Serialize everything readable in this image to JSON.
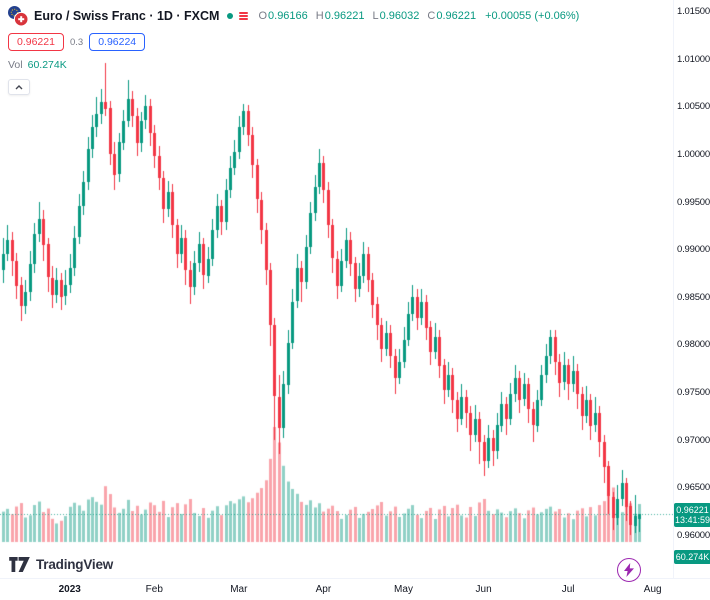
{
  "colors": {
    "up": "#089981",
    "down": "#F23645",
    "volume_up": "rgba(8,153,129,0.45)",
    "volume_down": "rgba(242,54,69,0.45)",
    "bid_red": "#F23645",
    "ask_blue": "#2962FF",
    "badge_bg": "#089981",
    "flash_purple": "#9C27B0"
  },
  "header": {
    "symbol_title": "Euro / Swiss Franc · 1D · FXCM",
    "ohlc": {
      "o_label": "O",
      "o_value": "0.96166",
      "h_label": "H",
      "h_value": "0.96221",
      "l_label": "L",
      "l_value": "0.96032",
      "c_label": "C",
      "c_value": "0.96221",
      "change_text": "+0.00055 (+0.06%)"
    },
    "bid": "0.96221",
    "spread": "0.3",
    "ask": "0.96224",
    "vol_label": "Vol",
    "vol_value": "60.274K"
  },
  "price_scale": {
    "labels": [
      "1.01500",
      "1.01000",
      "1.00500",
      "1.00000",
      "0.99500",
      "0.99000",
      "0.98500",
      "0.98000",
      "0.97500",
      "0.97000",
      "0.96500",
      "0.96000"
    ],
    "last_price": "0.96221",
    "countdown": "13:41:59",
    "volume_badge": "60.274K"
  },
  "time_scale": {
    "labels": [
      {
        "text": "2023",
        "day": 15,
        "bold": true
      },
      {
        "text": "Feb",
        "day": 34
      },
      {
        "text": "Mar",
        "day": 53
      },
      {
        "text": "Apr",
        "day": 72
      },
      {
        "text": "May",
        "day": 90
      },
      {
        "text": "Jun",
        "day": 108
      },
      {
        "text": "Jul",
        "day": 127
      },
      {
        "text": "Aug",
        "day": 146
      }
    ]
  },
  "footer": {
    "brand": "TradingView"
  },
  "chart_data": {
    "type": "candlestick",
    "title": "Euro / Swiss Franc",
    "symbol": "EUR/CHF",
    "interval": "1D",
    "exchange": "FXCM",
    "legend_position": "top-left",
    "grid": false,
    "y_axis": {
      "min": 0.958,
      "max": 1.0155,
      "tick_step": 0.005
    },
    "x_axis": {
      "start": "Dec 2022",
      "end": "Aug 2023"
    },
    "volume_pane": true,
    "last_bar": {
      "open": 0.96166,
      "high": 0.96221,
      "low": 0.96032,
      "close": 0.96221,
      "change": 0.00055,
      "change_pct": 0.06,
      "volume": "60.274K"
    },
    "candles_format": [
      "open",
      "high",
      "low",
      "close",
      "volume_thousands"
    ],
    "candles": [
      [
        0.9878,
        0.9912,
        0.9865,
        0.9895,
        48.2
      ],
      [
        0.9895,
        0.9925,
        0.9888,
        0.991,
        52.6
      ],
      [
        0.991,
        0.9918,
        0.9872,
        0.9888,
        44.1
      ],
      [
        0.9888,
        0.9896,
        0.9848,
        0.9862,
        56.3
      ],
      [
        0.9862,
        0.9871,
        0.9825,
        0.984,
        61.8
      ],
      [
        0.984,
        0.9868,
        0.9832,
        0.9855,
        38.9
      ],
      [
        0.9855,
        0.9898,
        0.9846,
        0.9884,
        42.4
      ],
      [
        0.9884,
        0.9928,
        0.9875,
        0.9916,
        58.7
      ],
      [
        0.9916,
        0.995,
        0.9908,
        0.9932,
        64.2
      ],
      [
        0.9932,
        0.9941,
        0.9888,
        0.9905,
        47.5
      ],
      [
        0.9905,
        0.9912,
        0.9855,
        0.987,
        53.1
      ],
      [
        0.987,
        0.9882,
        0.9838,
        0.9852,
        36.8
      ],
      [
        0.9852,
        0.988,
        0.9844,
        0.9868,
        29.4
      ],
      [
        0.9868,
        0.9875,
        0.9836,
        0.985,
        33.7
      ],
      [
        0.985,
        0.9878,
        0.9841,
        0.9862,
        41.2
      ],
      [
        0.9862,
        0.9895,
        0.9854,
        0.988,
        55.9
      ],
      [
        0.988,
        0.9924,
        0.9872,
        0.9912,
        62.3
      ],
      [
        0.9912,
        0.9958,
        0.9905,
        0.9945,
        58.1
      ],
      [
        0.9945,
        0.9982,
        0.9936,
        0.997,
        49.6
      ],
      [
        0.997,
        1.0018,
        0.9962,
        1.0005,
        67.4
      ],
      [
        1.0005,
        1.0041,
        0.9996,
        1.0028,
        71.2
      ],
      [
        1.0028,
        1.006,
        1.0018,
        1.0042,
        63.8
      ],
      [
        1.0042,
        1.0068,
        1.0031,
        1.0055,
        59.3
      ],
      [
        1.0055,
        1.0095,
        1.004,
        1.0048,
        88.6
      ],
      [
        1.0048,
        1.0056,
        0.9988,
        1.0,
        76.1
      ],
      [
        1.0,
        1.0012,
        0.9962,
        0.9978,
        54.8
      ],
      [
        0.9978,
        1.0022,
        0.997,
        1.0012,
        46.3
      ],
      [
        1.0012,
        1.0046,
        1.0004,
        1.0035,
        52.7
      ],
      [
        1.0035,
        1.0078,
        1.0028,
        1.0058,
        66.9
      ],
      [
        1.0058,
        1.0066,
        1.0028,
        1.004,
        49.2
      ],
      [
        1.004,
        1.0048,
        0.9998,
        1.0012,
        57.5
      ],
      [
        1.0012,
        1.0044,
        1.0002,
        1.0035,
        43.8
      ],
      [
        1.0035,
        1.0062,
        1.0026,
        1.005,
        51.4
      ],
      [
        1.005,
        1.0058,
        1.0008,
        1.0022,
        62.7
      ],
      [
        1.0022,
        1.003,
        0.9985,
        0.9998,
        58.4
      ],
      [
        0.9998,
        1.0008,
        0.9962,
        0.9975,
        47.9
      ],
      [
        0.9975,
        0.9982,
        0.9928,
        0.9942,
        65.3
      ],
      [
        0.9942,
        0.9972,
        0.9934,
        0.996,
        39.6
      ],
      [
        0.996,
        0.9968,
        0.9912,
        0.9925,
        55.2
      ],
      [
        0.9925,
        0.9932,
        0.988,
        0.9895,
        61.7
      ],
      [
        0.9895,
        0.9925,
        0.9886,
        0.9912,
        44.5
      ],
      [
        0.9912,
        0.992,
        0.9862,
        0.9878,
        59.8
      ],
      [
        0.9878,
        0.9888,
        0.9842,
        0.986,
        68.2
      ],
      [
        0.986,
        0.9898,
        0.9852,
        0.9885,
        46.1
      ],
      [
        0.9885,
        0.9918,
        0.9876,
        0.9905,
        41.3
      ],
      [
        0.9905,
        0.9912,
        0.9858,
        0.9872,
        53.9
      ],
      [
        0.9872,
        0.9902,
        0.9864,
        0.989,
        38.4
      ],
      [
        0.989,
        0.9932,
        0.9882,
        0.992,
        49.7
      ],
      [
        0.992,
        0.9958,
        0.9912,
        0.9945,
        56.8
      ],
      [
        0.9945,
        0.9952,
        0.9915,
        0.9928,
        42.6
      ],
      [
        0.9928,
        0.9974,
        0.992,
        0.9962,
        58.3
      ],
      [
        0.9962,
        0.9998,
        0.9954,
        0.9985,
        64.9
      ],
      [
        0.9985,
        1.0015,
        0.9978,
        1.0002,
        61.2
      ],
      [
        1.0002,
        1.004,
        0.9995,
        1.0028,
        67.8
      ],
      [
        1.0028,
        1.0052,
        1.002,
        1.0045,
        72.4
      ],
      [
        1.0045,
        1.0051,
        1.0008,
        1.002,
        63.1
      ],
      [
        1.002,
        1.0028,
        0.9975,
        0.9988,
        69.5
      ],
      [
        0.9988,
        0.9995,
        0.9938,
        0.9952,
        78.2
      ],
      [
        0.9952,
        0.996,
        0.9905,
        0.992,
        85.6
      ],
      [
        0.992,
        0.9928,
        0.9862,
        0.9878,
        98.0
      ],
      [
        0.9878,
        0.9885,
        0.9798,
        0.982,
        132.0
      ],
      [
        0.982,
        0.9828,
        0.97,
        0.9745,
        182.6
      ],
      [
        0.9745,
        0.9768,
        0.9685,
        0.9712,
        158.0
      ],
      [
        0.9712,
        0.9772,
        0.9702,
        0.9758,
        121.0
      ],
      [
        0.9758,
        0.9815,
        0.9748,
        0.9802,
        96.0
      ],
      [
        0.9802,
        0.9858,
        0.9795,
        0.9845,
        84.2
      ],
      [
        0.9845,
        0.9895,
        0.9838,
        0.988,
        76.5
      ],
      [
        0.988,
        0.9888,
        0.9845,
        0.9865,
        63.7
      ],
      [
        0.9865,
        0.9915,
        0.9858,
        0.9902,
        58.9
      ],
      [
        0.9902,
        0.995,
        0.9895,
        0.9938,
        66.2
      ],
      [
        0.9938,
        0.9978,
        0.993,
        0.9965,
        54.8
      ],
      [
        0.9965,
        1.0005,
        0.9958,
        0.999,
        61.5
      ],
      [
        0.999,
        0.9998,
        0.9948,
        0.9962,
        48.3
      ],
      [
        0.9962,
        0.997,
        0.9912,
        0.9925,
        52.9
      ],
      [
        0.9925,
        0.9932,
        0.9875,
        0.989,
        57.6
      ],
      [
        0.989,
        0.9898,
        0.9848,
        0.9862,
        49.1
      ],
      [
        0.9862,
        0.99,
        0.9855,
        0.9888,
        36.7
      ],
      [
        0.9888,
        0.9922,
        0.988,
        0.991,
        42.8
      ],
      [
        0.991,
        0.9918,
        0.9872,
        0.9885,
        51.3
      ],
      [
        0.9885,
        0.9892,
        0.9845,
        0.9858,
        55.7
      ],
      [
        0.9858,
        0.9885,
        0.985,
        0.9872,
        38.2
      ],
      [
        0.9872,
        0.9908,
        0.9864,
        0.9895,
        44.6
      ],
      [
        0.9895,
        0.9902,
        0.9855,
        0.9868,
        47.9
      ],
      [
        0.9868,
        0.9875,
        0.9828,
        0.9842,
        52.4
      ],
      [
        0.9842,
        0.985,
        0.9805,
        0.982,
        58.1
      ],
      [
        0.982,
        0.9828,
        0.9782,
        0.9795,
        63.5
      ],
      [
        0.9795,
        0.9825,
        0.9788,
        0.9812,
        41.9
      ],
      [
        0.9812,
        0.982,
        0.9775,
        0.9788,
        48.7
      ],
      [
        0.9788,
        0.9795,
        0.9748,
        0.9765,
        56.2
      ],
      [
        0.9765,
        0.9795,
        0.9758,
        0.9782,
        39.8
      ],
      [
        0.9782,
        0.9818,
        0.9775,
        0.9805,
        45.3
      ],
      [
        0.9805,
        0.9845,
        0.9798,
        0.9832,
        52.8
      ],
      [
        0.9832,
        0.9862,
        0.9825,
        0.985,
        58.6
      ],
      [
        0.985,
        0.9858,
        0.9815,
        0.9828,
        43.2
      ],
      [
        0.9828,
        0.9858,
        0.982,
        0.9845,
        37.9
      ],
      [
        0.9845,
        0.9852,
        0.9805,
        0.9818,
        49.4
      ],
      [
        0.9818,
        0.9825,
        0.9778,
        0.9792,
        54.1
      ],
      [
        0.9792,
        0.9822,
        0.9785,
        0.9808,
        36.5
      ],
      [
        0.9808,
        0.9815,
        0.9765,
        0.9778,
        51.7
      ],
      [
        0.9778,
        0.9785,
        0.9738,
        0.9752,
        57.3
      ],
      [
        0.9752,
        0.9782,
        0.9745,
        0.9768,
        40.6
      ],
      [
        0.9768,
        0.9775,
        0.9728,
        0.9742,
        53.9
      ],
      [
        0.9742,
        0.975,
        0.9708,
        0.9722,
        59.2
      ],
      [
        0.9722,
        0.9758,
        0.9715,
        0.9745,
        42.1
      ],
      [
        0.9745,
        0.9752,
        0.9712,
        0.9728,
        38.8
      ],
      [
        0.9728,
        0.9735,
        0.9688,
        0.9705,
        55.6
      ],
      [
        0.9705,
        0.9736,
        0.9698,
        0.9722,
        41.4
      ],
      [
        0.9722,
        0.9729,
        0.9675,
        0.9698,
        62.8
      ],
      [
        0.9698,
        0.9705,
        0.9662,
        0.9678,
        68.3
      ],
      [
        0.9678,
        0.9715,
        0.967,
        0.9702,
        49.5
      ],
      [
        0.9702,
        0.971,
        0.9672,
        0.9688,
        44.2
      ],
      [
        0.9688,
        0.9728,
        0.968,
        0.9715,
        51.8
      ],
      [
        0.9715,
        0.975,
        0.9708,
        0.9738,
        46.7
      ],
      [
        0.9738,
        0.9745,
        0.9705,
        0.9722,
        39.3
      ],
      [
        0.9722,
        0.976,
        0.9715,
        0.9748,
        48.9
      ],
      [
        0.9748,
        0.9778,
        0.974,
        0.9765,
        53.4
      ],
      [
        0.9765,
        0.9772,
        0.9728,
        0.9742,
        45.8
      ],
      [
        0.9742,
        0.977,
        0.9735,
        0.9758,
        37.6
      ],
      [
        0.9758,
        0.9765,
        0.9718,
        0.9732,
        50.2
      ],
      [
        0.9732,
        0.974,
        0.9698,
        0.9715,
        54.7
      ],
      [
        0.9715,
        0.9752,
        0.9708,
        0.9742,
        43.9
      ],
      [
        0.9742,
        0.9778,
        0.9735,
        0.9768,
        47.2
      ],
      [
        0.9768,
        0.98,
        0.976,
        0.9788,
        52.6
      ],
      [
        0.9788,
        0.9815,
        0.978,
        0.9808,
        56.1
      ],
      [
        0.9808,
        0.9815,
        0.9768,
        0.9782,
        48.4
      ],
      [
        0.9782,
        0.979,
        0.9745,
        0.976,
        52.3
      ],
      [
        0.976,
        0.9792,
        0.9752,
        0.9778,
        38.9
      ],
      [
        0.9778,
        0.9785,
        0.9742,
        0.9758,
        45.6
      ],
      [
        0.9758,
        0.9788,
        0.975,
        0.9772,
        36.2
      ],
      [
        0.9772,
        0.978,
        0.9732,
        0.9748,
        49.8
      ],
      [
        0.9748,
        0.9755,
        0.971,
        0.9725,
        53.5
      ],
      [
        0.9725,
        0.9756,
        0.9718,
        0.9742,
        40.7
      ],
      [
        0.9742,
        0.9748,
        0.97,
        0.9715,
        55.4
      ],
      [
        0.9715,
        0.9745,
        0.9708,
        0.9728,
        42.3
      ],
      [
        0.9728,
        0.9735,
        0.9682,
        0.9698,
        58.6
      ],
      [
        0.9698,
        0.9705,
        0.9655,
        0.9672,
        64.9
      ],
      [
        0.9672,
        0.9678,
        0.9622,
        0.964,
        78.2
      ],
      [
        0.964,
        0.9645,
        0.9605,
        0.9618,
        86.5
      ],
      [
        0.9618,
        0.9652,
        0.961,
        0.9638,
        59.7
      ],
      [
        0.9638,
        0.9668,
        0.963,
        0.9655,
        47.3
      ],
      [
        0.9655,
        0.966,
        0.9615,
        0.963,
        55.8
      ],
      [
        0.963,
        0.9636,
        0.96,
        0.961,
        61.4
      ],
      [
        0.961,
        0.9642,
        0.9602,
        0.962,
        44.9
      ],
      [
        0.96166,
        0.96221,
        0.96032,
        0.96221,
        60.274
      ]
    ]
  }
}
